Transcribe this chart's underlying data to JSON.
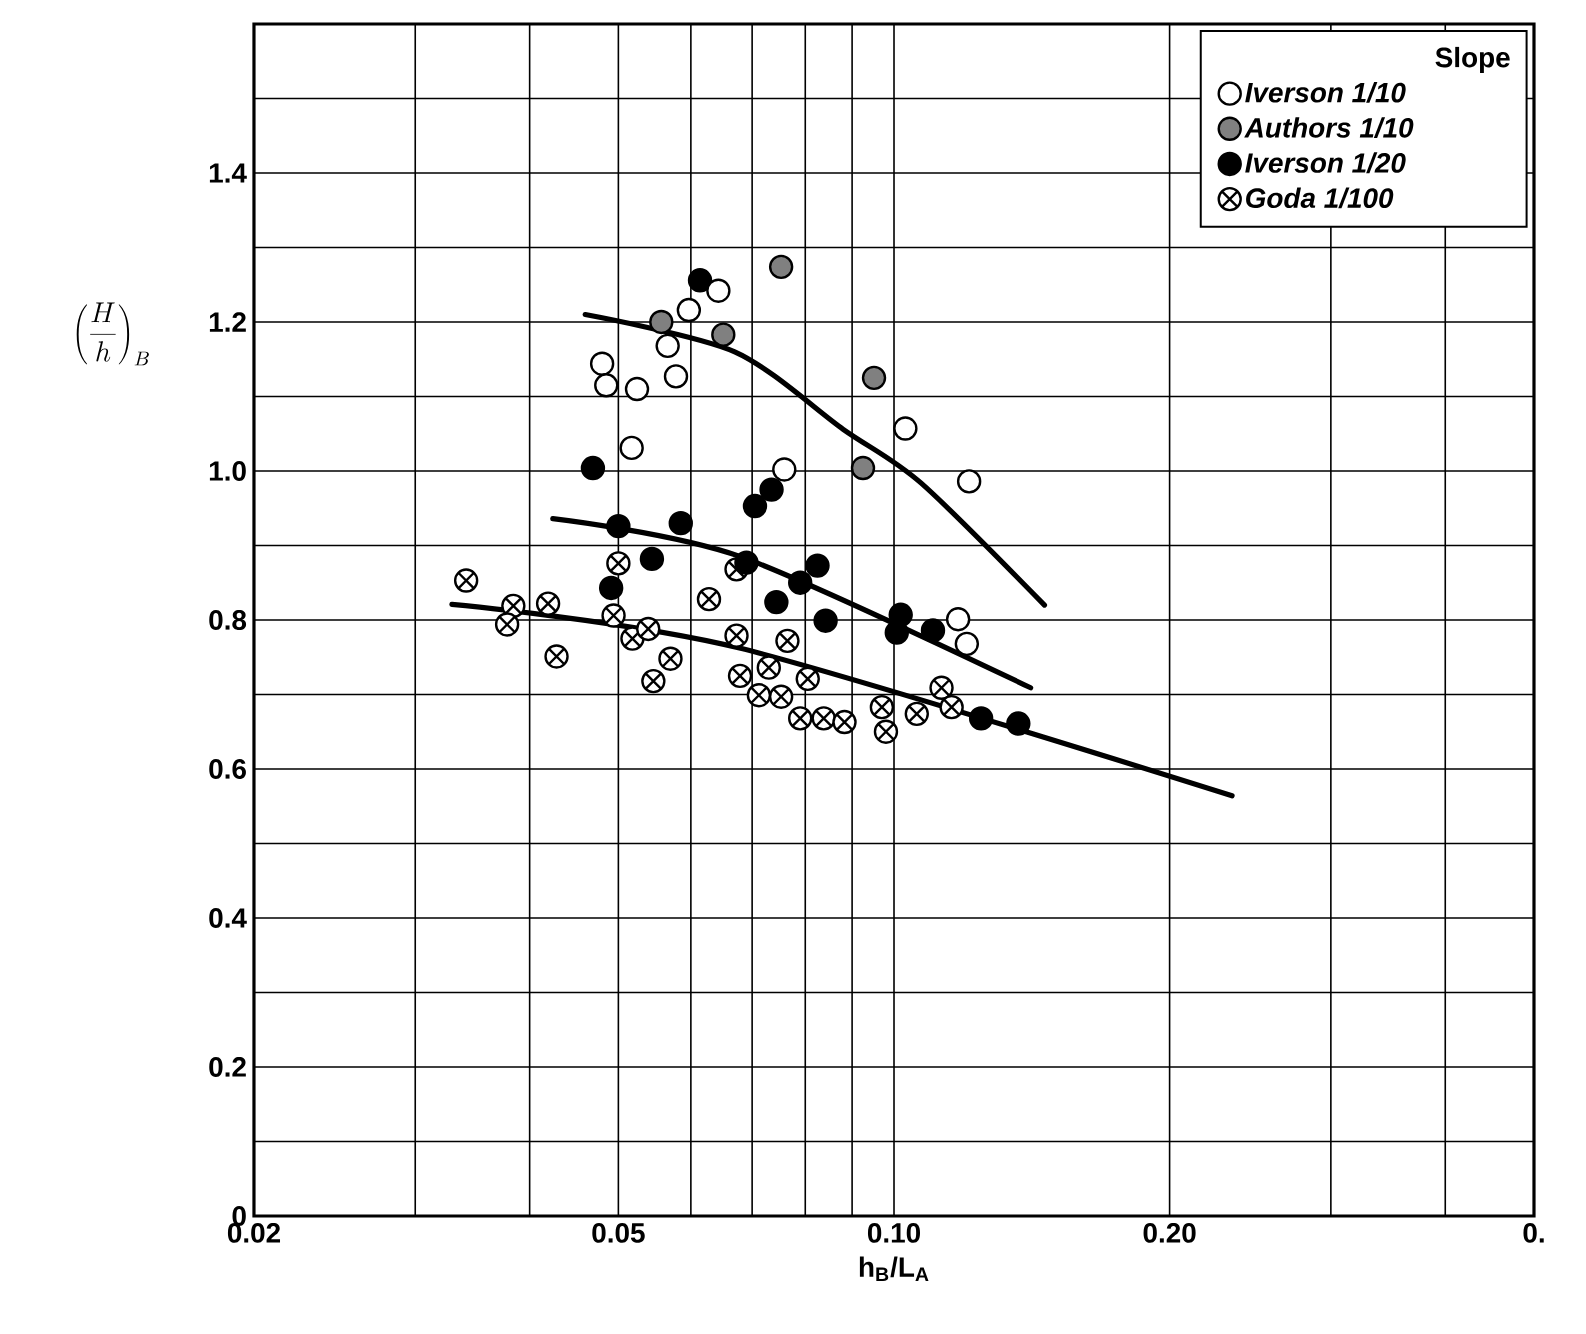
{
  "chart_data": {
    "type": "scatter",
    "xlabel": "h$_{B}$/L$_{A}$",
    "ylabel": "\\left(\\frac{H}{h}\\right)_{B}",
    "legend_title": "Slope",
    "log": "x",
    "grid": true,
    "legend": "top right",
    "xlim": [
      0.02,
      0.5
    ],
    "ylim": [
      0,
      1.6
    ],
    "xticks": [
      {
        "value": 0.02,
        "label": "0.02"
      },
      {
        "value": 0.03,
        "label": null
      },
      {
        "value": 0.04,
        "label": null
      },
      {
        "value": 0.05,
        "label": "0.05"
      },
      {
        "value": 0.06,
        "label": null
      },
      {
        "value": 0.07,
        "label": null
      },
      {
        "value": 0.08,
        "label": null
      },
      {
        "value": 0.09,
        "label": null
      },
      {
        "value": 0.1,
        "label": "0.10"
      },
      {
        "value": 0.2,
        "label": "0.20"
      },
      {
        "value": 0.3,
        "label": null
      },
      {
        "value": 0.4,
        "label": null
      },
      {
        "value": 0.5,
        "label": "0."
      }
    ],
    "yticks": [
      0,
      {
        "value": 0.1,
        "label": null
      },
      0.2,
      {
        "value": 0.3,
        "label": null
      },
      0.4,
      {
        "value": 0.5,
        "label": null
      },
      0.6,
      {
        "value": 0.7,
        "label": null
      },
      0.8,
      {
        "value": 0.9,
        "label": null
      },
      {
        "value": 1.0,
        "label": "1.0"
      },
      {
        "value": 1.1,
        "label": null
      },
      1.2,
      {
        "value": 1.3,
        "label": null
      },
      1.4,
      {
        "value": 1.5,
        "label": null
      },
      {
        "value": 1.6,
        "label": null
      }
    ],
    "series": [
      {
        "name": "Iverson  1/10",
        "color": "#ffffff",
        "marker": "circle",
        "x": [
          0.048,
          0.0485,
          0.0524,
          0.0578,
          0.0566,
          0.0597,
          0.0643,
          0.0517,
          0.0759,
          0.1029,
          0.1208,
          0.1175,
          0.1201
        ],
        "values": [
          1.144,
          1.115,
          1.11,
          1.127,
          1.168,
          1.216,
          1.242,
          1.031,
          1.002,
          1.057,
          0.986,
          0.801,
          0.768
        ]
      },
      {
        "name": "Authors 1/10",
        "color": "#808080",
        "marker": "circle",
        "x": [
          0.0753,
          0.0557,
          0.0651,
          0.0951,
          0.0925
        ],
        "values": [
          1.274,
          1.2,
          1.183,
          1.125,
          1.004
        ]
      },
      {
        "name": "Iverson  1/20",
        "color": "#000000",
        "marker": "circle",
        "x": [
          0.0614,
          0.0469,
          0.05,
          0.0585,
          0.0544,
          0.0491,
          0.0705,
          0.0735,
          0.069,
          0.0825,
          0.079,
          0.0744,
          0.0842,
          0.1017,
          0.1007,
          0.1103,
          0.1245,
          0.1367
        ],
        "values": [
          1.256,
          1.004,
          0.926,
          0.93,
          0.882,
          0.843,
          0.953,
          0.975,
          0.877,
          0.873,
          0.85,
          0.824,
          0.799,
          0.807,
          0.783,
          0.786,
          0.668,
          0.661
        ]
      },
      {
        "name": "Goda      1/100",
        "color": "#ffffff",
        "marker": "cross",
        "x": [
          0.0341,
          0.0384,
          0.0378,
          0.0419,
          0.0428,
          0.05,
          0.0494,
          0.0518,
          0.0539,
          0.057,
          0.0546,
          0.0628,
          0.0673,
          0.0673,
          0.0765,
          0.0679,
          0.073,
          0.0712,
          0.0753,
          0.0805,
          0.079,
          0.0838,
          0.0883,
          0.097,
          0.098,
          0.1059,
          0.1127,
          0.1156
        ],
        "values": [
          0.853,
          0.819,
          0.794,
          0.822,
          0.751,
          0.876,
          0.806,
          0.775,
          0.788,
          0.748,
          0.718,
          0.828,
          0.868,
          0.779,
          0.772,
          0.725,
          0.736,
          0.699,
          0.697,
          0.721,
          0.668,
          0.668,
          0.663,
          0.683,
          0.65,
          0.674,
          0.709,
          0.683
        ]
      },
      {
        "type": "line",
        "color": "#000000",
        "x": [
          0.046,
          0.067,
          0.088,
          0.107,
          0.146
        ],
        "values": [
          1.21,
          1.16,
          1.056,
          0.984,
          0.82
        ]
      },
      {
        "type": "line",
        "color": "#000000",
        "x": [
          0.0424,
          0.068,
          0.141
        ],
        "values": [
          0.936,
          0.885,
          0.709
        ]
      },
      {
        "type": "line",
        "color": "#000000",
        "x": [
          0.0329,
          0.068,
          0.234
        ],
        "values": [
          0.821,
          0.762,
          0.564
        ]
      }
    ]
  }
}
